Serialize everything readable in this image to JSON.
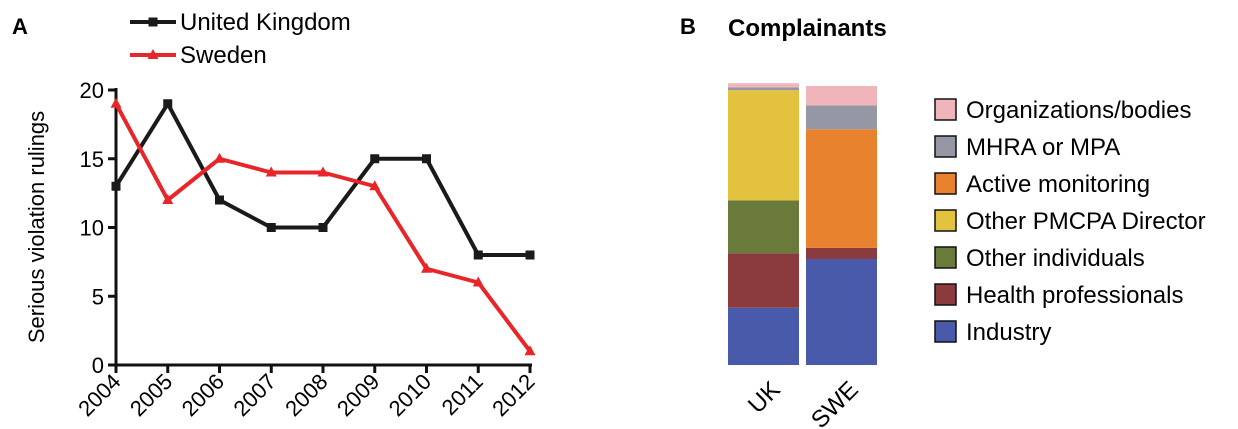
{
  "panel_a": {
    "letter": "A"
  },
  "panel_b": {
    "letter": "B",
    "title": "Complainants"
  },
  "chart_data": [
    {
      "type": "line",
      "x": [
        "2004",
        "2005",
        "2006",
        "2007",
        "2008",
        "2009",
        "2010",
        "2011",
        "2012"
      ],
      "ylabel": "Serious violation rulings",
      "xlabel": "",
      "ylim": [
        0,
        20
      ],
      "yticks": [
        "0",
        "5",
        "10",
        "15",
        "20"
      ],
      "grid": false,
      "legend": "top-left",
      "series": [
        {
          "name": "United Kingdom",
          "color": "#1a1a1a",
          "marker": "square",
          "values": [
            13,
            19,
            12,
            10,
            10,
            15,
            15,
            8,
            8
          ]
        },
        {
          "name": "Sweden",
          "color": "#e8262a",
          "marker": "triangle",
          "values": [
            19,
            12,
            15,
            14,
            14,
            13,
            7,
            6,
            1
          ]
        }
      ]
    },
    {
      "type": "bar",
      "stacked": true,
      "normalized": true,
      "title": "Complainants",
      "categories": [
        "UK",
        "SWE"
      ],
      "legend": "right",
      "series": [
        {
          "name": "Industry",
          "color": "#4a5aaa",
          "values": [
            0.205,
            0.38
          ]
        },
        {
          "name": "Health professionals",
          "color": "#8b3a3e",
          "values": [
            0.195,
            0.04
          ]
        },
        {
          "name": "Other individuals",
          "color": "#6a7a3a",
          "values": [
            0.19,
            0.0
          ]
        },
        {
          "name": "Other PMCPA Director",
          "color": "#e2c23e",
          "values": [
            0.395,
            0.0
          ]
        },
        {
          "name": "Active monitoring",
          "color": "#e8822e",
          "values": [
            0.0,
            0.425
          ]
        },
        {
          "name": "MHRA or MPA",
          "color": "#9697a4",
          "values": [
            0.01,
            0.085
          ]
        },
        {
          "name": "Organizations/bodies",
          "color": "#f0b5ba",
          "values": [
            0.015,
            0.07
          ]
        }
      ]
    }
  ]
}
